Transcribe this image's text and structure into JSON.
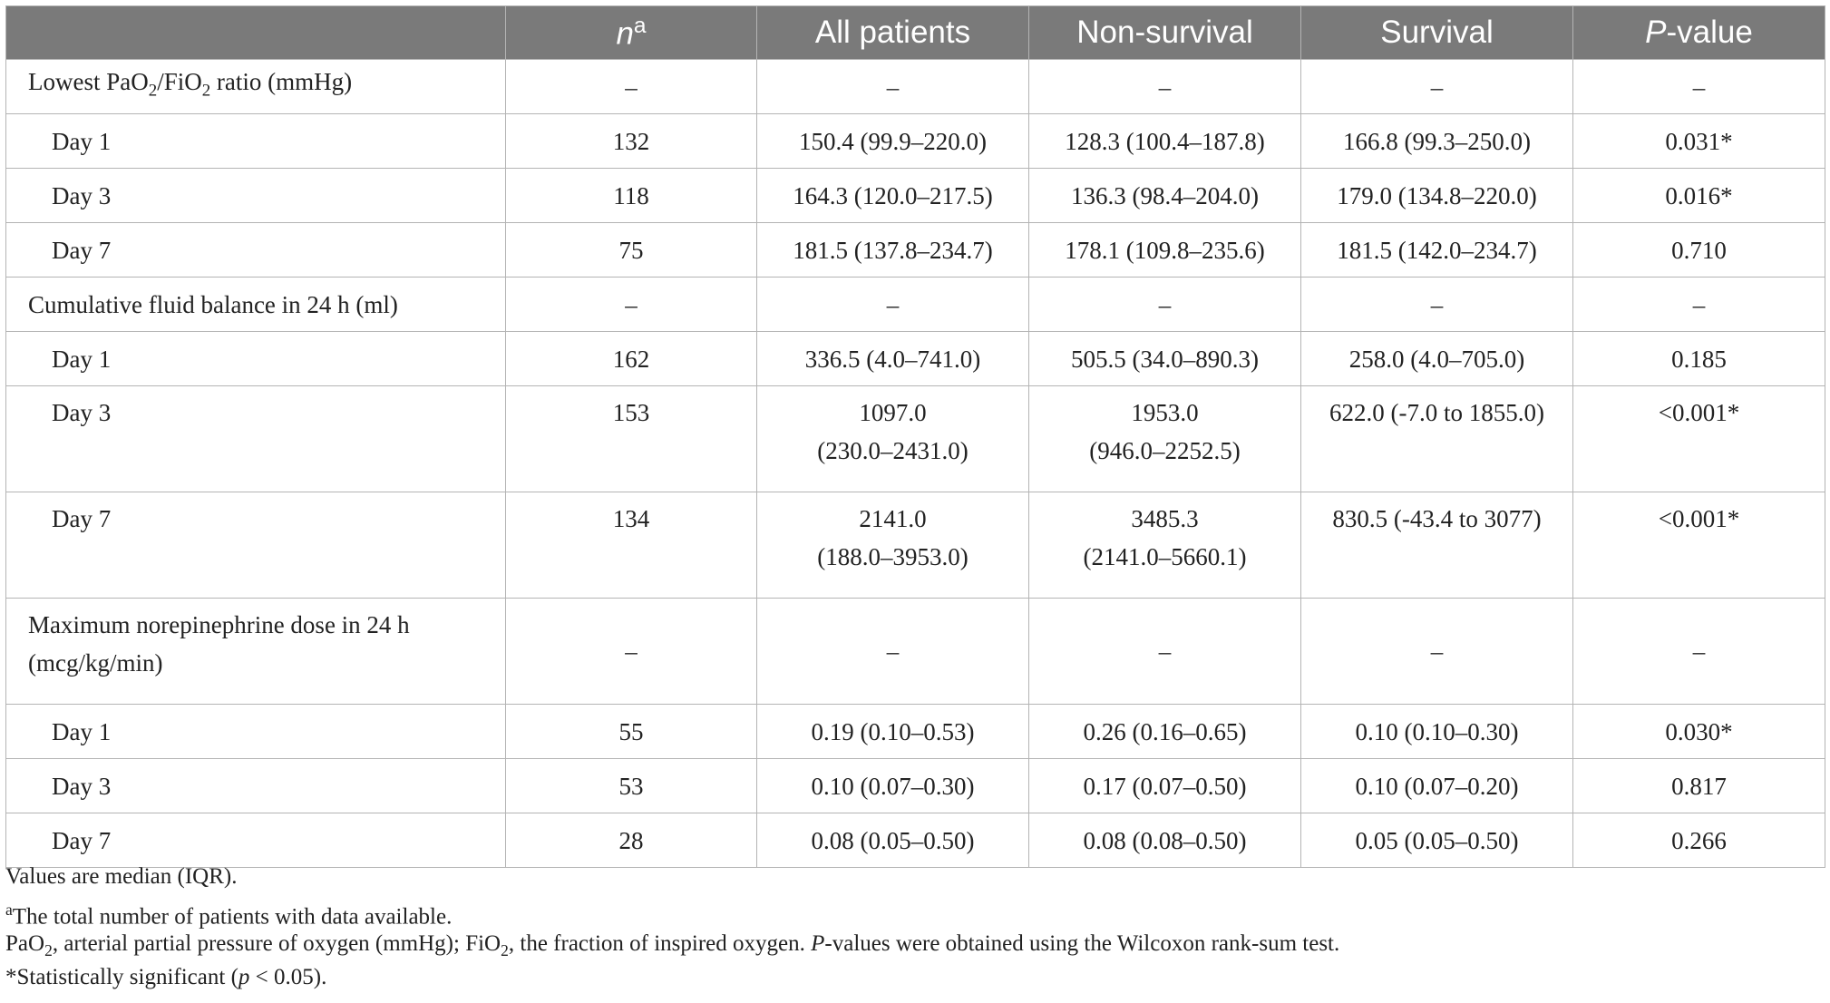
{
  "table": {
    "headers": {
      "label": "",
      "n": "n",
      "n_sup": "a",
      "all": "All patients",
      "nonsurv": "Non-survival",
      "surv": "Survival",
      "p_italic": "P",
      "p_rest": "-value"
    },
    "rows": [
      {
        "label": "",
        "n": "–",
        "all": "–",
        "nonsurv": "–",
        "surv": "–",
        "p": "–"
      },
      {
        "label": "Day 1",
        "n": "132",
        "all": "150.4 (99.9–220.0)",
        "nonsurv": "128.3 (100.4–187.8)",
        "surv": "166.8 (99.3–250.0)",
        "p": "0.031*"
      },
      {
        "label": "Day 3",
        "n": "118",
        "all": "164.3 (120.0–217.5)",
        "nonsurv": "136.3 (98.4–204.0)",
        "surv": "179.0 (134.8–220.0)",
        "p": "0.016*"
      },
      {
        "label": "Day 7",
        "n": "75",
        "all": "181.5 (137.8–234.7)",
        "nonsurv": "178.1 (109.8–235.6)",
        "surv": "181.5 (142.0–234.7)",
        "p": "0.710"
      },
      {
        "label": "Cumulative fluid balance in 24 h (ml)",
        "n": "–",
        "all": "–",
        "nonsurv": "–",
        "surv": "–",
        "p": "–"
      },
      {
        "label": "Day 1",
        "n": "162",
        "all": "336.5 (4.0–741.0)",
        "nonsurv": "505.5 (34.0–890.3)",
        "surv": "258.0 (4.0–705.0)",
        "p": "0.185"
      },
      {
        "label": "Day 3",
        "n": "153",
        "all_l1": "1097.0",
        "all_l2": "(230.0–2431.0)",
        "nonsurv_l1": "1953.0",
        "nonsurv_l2": "(946.0–2252.5)",
        "surv": "622.0 (-7.0 to 1855.0)",
        "p": "<0.001*"
      },
      {
        "label": "Day 7",
        "n": "134",
        "all_l1": "2141.0",
        "all_l2": "(188.0–3953.0)",
        "nonsurv_l1": "3485.3",
        "nonsurv_l2": "(2141.0–5660.1)",
        "surv": "830.5 (-43.4 to 3077)",
        "p": "<0.001*"
      },
      {
        "label_l1": "Maximum norepinephrine dose in 24 h",
        "label_l2": "(mcg/kg/min)",
        "n": "–",
        "all": "–",
        "nonsurv": "–",
        "surv": "–",
        "p": "–"
      },
      {
        "label": "Day 1",
        "n": "55",
        "all": "0.19 (0.10–0.53)",
        "nonsurv": "0.26 (0.16–0.65)",
        "surv": "0.10 (0.10–0.30)",
        "p": "0.030*"
      },
      {
        "label": "Day 3",
        "n": "53",
        "all": "0.10 (0.07–0.30)",
        "nonsurv": "0.17 (0.07–0.50)",
        "surv": "0.10 (0.07–0.20)",
        "p": "0.817"
      },
      {
        "label": "Day 7",
        "n": "28",
        "all": "0.08 (0.05–0.50)",
        "nonsurv": "0.08 (0.08–0.50)",
        "surv": "0.05 (0.05–0.50)",
        "p": "0.266"
      }
    ],
    "first_label": {
      "a": "Lowest PaO",
      "b": "2",
      "c": "/FiO",
      "d": "2",
      "e": " ratio (mmHg)"
    }
  },
  "notes": {
    "n1": "Values are median (IQR).",
    "n2_sup": "a",
    "n2": "The total number of patients with data available.",
    "n3": {
      "a": "PaO",
      "b": "2",
      "c": ", arterial partial pressure of oxygen (mmHg); FiO",
      "d": "2",
      "e": ", the fraction of inspired oxygen. ",
      "f": "P",
      "g": "-values were obtained using the Wilcoxon rank-sum test."
    },
    "n4": {
      "a": "*Statistically significant (",
      "b": "p",
      "c": " < 0.05)."
    }
  }
}
